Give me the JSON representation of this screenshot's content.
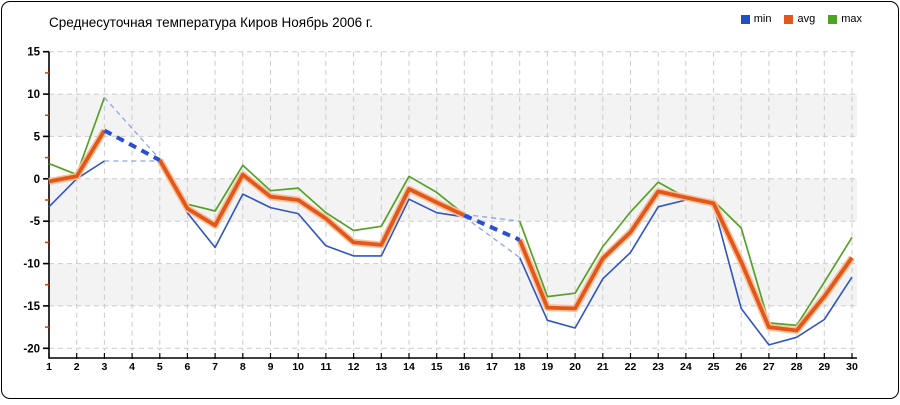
{
  "header": {
    "title": "Среднесуточная температура Киров  Ноябрь 2006 г."
  },
  "legend": {
    "items": [
      {
        "label": "min",
        "color": "#2050C8"
      },
      {
        "label": "avg",
        "color": "#E2581A"
      },
      {
        "label": "max",
        "color": "#4DA420"
      }
    ]
  },
  "chart_data": {
    "type": "line",
    "title": "Среднесуточная температура Киров Ноябрь 2006 г.",
    "x": [
      1,
      2,
      3,
      4,
      5,
      6,
      7,
      8,
      9,
      10,
      11,
      12,
      13,
      14,
      15,
      16,
      17,
      18,
      19,
      20,
      21,
      22,
      23,
      24,
      25,
      26,
      27,
      28,
      29,
      30
    ],
    "ylim": [
      -20,
      15
    ],
    "y_ticks": [
      15,
      10,
      5,
      0,
      -5,
      -10,
      -15,
      -20
    ],
    "y_minor_ticks": [
      12.5,
      7.5,
      2.5,
      -2.5,
      -7.5,
      -12.5,
      -17.5
    ],
    "grid": true,
    "legend_position": "top-right",
    "gray_bands": [
      [
        5,
        10
      ],
      [
        -5,
        0
      ],
      [
        -15,
        -10
      ]
    ],
    "missing_data_days": [
      4,
      17
    ],
    "interpolation_style": {
      "avg": "thick-blue-dashed",
      "min_max": "thin-lightblue-dashed"
    },
    "series": [
      {
        "name": "min",
        "color": "#2F55C5",
        "width": 1.6,
        "values": [
          -3.3,
          0.0,
          2.1,
          null,
          2.1,
          -4.0,
          -8.1,
          -1.8,
          -3.4,
          -4.1,
          -7.9,
          -9.1,
          -9.1,
          -2.4,
          -4.0,
          -4.5,
          null,
          -9.3,
          -16.7,
          -17.6,
          -11.8,
          -8.7,
          -3.3,
          -2.5,
          -3.1,
          -15.3,
          -19.6,
          -18.7,
          -16.6,
          -11.6
        ]
      },
      {
        "name": "avg",
        "color": "#E2581A",
        "halo": "#F8C09A",
        "width": 3.8,
        "values": [
          -0.3,
          0.3,
          5.7,
          null,
          2.2,
          -3.5,
          -5.5,
          0.5,
          -2.1,
          -2.5,
          -4.7,
          -7.5,
          -7.8,
          -1.2,
          -2.8,
          -4.3,
          null,
          -7.2,
          -15.2,
          -15.3,
          -9.4,
          -6.3,
          -1.5,
          -2.2,
          -2.9,
          -9.8,
          -17.5,
          -17.9,
          -13.9,
          -9.3
        ]
      },
      {
        "name": "max",
        "color": "#55A226",
        "width": 1.7,
        "values": [
          1.8,
          0.5,
          9.6,
          null,
          2.3,
          -3.0,
          -3.8,
          1.6,
          -1.4,
          -1.1,
          -4.0,
          -6.1,
          -5.6,
          0.3,
          -1.6,
          -4.2,
          null,
          -5.0,
          -13.9,
          -13.5,
          -8.0,
          -3.9,
          -0.4,
          -2.2,
          -2.6,
          -5.8,
          -17.0,
          -17.3,
          -12.2,
          -6.9
        ]
      }
    ],
    "colors": {
      "grid": "#CBCBCB",
      "band_gray": "#F3F3F3",
      "axis": "#000000",
      "minor_tick_red": "#D94000",
      "interp_avg_dash": "#2B4FD4",
      "interp_thin_dash": "#8CA6E6"
    }
  }
}
